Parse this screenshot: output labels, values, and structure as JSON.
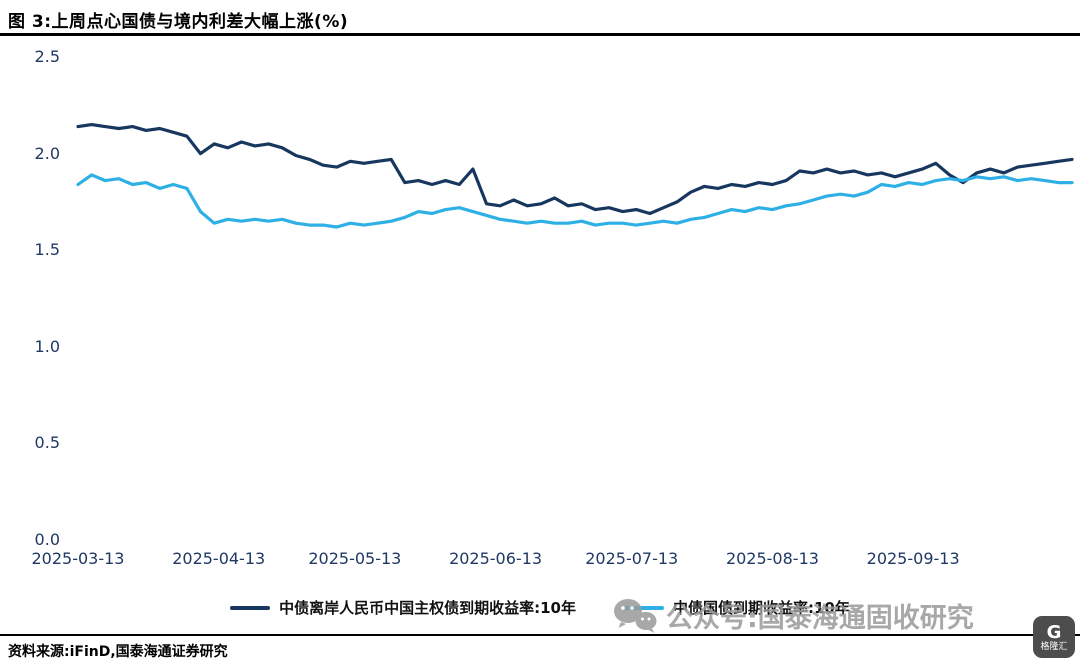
{
  "header": {
    "title": "图 3:上周点心国债与境内利差大幅上涨(%)"
  },
  "chart_data": {
    "type": "line",
    "title": "上周点心国债与境内利差大幅上涨(%)",
    "xlabel": "",
    "ylabel": "",
    "unit": "%",
    "grid": false,
    "legend_position": "bottom",
    "ylim": [
      0,
      2.5
    ],
    "yticks": [
      0.0,
      0.5,
      1.0,
      1.5,
      2.0,
      2.5
    ],
    "x_unit": "days since 2025-03-13",
    "xtick_days": [
      0,
      31,
      61,
      92,
      122,
      153,
      184
    ],
    "xtick_labels": [
      "2025-03-13",
      "2025-04-13",
      "2025-05-13",
      "2025-06-13",
      "2025-07-13",
      "2025-08-13",
      "2025-09-13"
    ],
    "x": [
      0,
      3,
      6,
      9,
      12,
      15,
      18,
      21,
      24,
      27,
      30,
      33,
      36,
      39,
      42,
      45,
      48,
      51,
      54,
      57,
      60,
      63,
      66,
      69,
      72,
      75,
      78,
      81,
      84,
      87,
      90,
      93,
      96,
      99,
      102,
      105,
      108,
      111,
      114,
      117,
      120,
      123,
      126,
      129,
      132,
      135,
      138,
      141,
      144,
      147,
      150,
      153,
      156,
      159,
      162,
      165,
      168,
      171,
      174,
      177,
      180,
      183,
      186,
      189,
      192,
      195,
      198,
      201,
      204,
      207,
      210,
      213,
      216,
      219
    ],
    "series": [
      {
        "id": "offshore-cny-china-sovereign-10y",
        "name": "中债离岸人民币中国主权债到期收益率:10年",
        "color": "#17375e",
        "values": [
          2.14,
          2.15,
          2.14,
          2.13,
          2.14,
          2.12,
          2.13,
          2.11,
          2.09,
          2.0,
          2.05,
          2.03,
          2.06,
          2.04,
          2.05,
          2.03,
          1.99,
          1.97,
          1.94,
          1.93,
          1.96,
          1.95,
          1.96,
          1.97,
          1.85,
          1.86,
          1.84,
          1.86,
          1.84,
          1.92,
          1.74,
          1.73,
          1.76,
          1.73,
          1.74,
          1.77,
          1.73,
          1.74,
          1.71,
          1.72,
          1.7,
          1.71,
          1.69,
          1.72,
          1.75,
          1.8,
          1.83,
          1.82,
          1.84,
          1.83,
          1.85,
          1.84,
          1.86,
          1.91,
          1.9,
          1.92,
          1.9,
          1.91,
          1.89,
          1.9,
          1.88,
          1.9,
          1.92,
          1.95,
          1.89,
          1.85,
          1.9,
          1.92,
          1.9,
          1.93,
          1.94,
          1.95,
          1.96,
          1.97
        ]
      },
      {
        "id": "onshore-cgb-10y",
        "name": "中债国债到期收益率:10年",
        "color": "#2eb0e6",
        "values": [
          1.84,
          1.89,
          1.86,
          1.87,
          1.84,
          1.85,
          1.82,
          1.84,
          1.82,
          1.7,
          1.64,
          1.66,
          1.65,
          1.66,
          1.65,
          1.66,
          1.64,
          1.63,
          1.63,
          1.62,
          1.64,
          1.63,
          1.64,
          1.65,
          1.67,
          1.7,
          1.69,
          1.71,
          1.72,
          1.7,
          1.68,
          1.66,
          1.65,
          1.64,
          1.65,
          1.64,
          1.64,
          1.65,
          1.63,
          1.64,
          1.64,
          1.63,
          1.64,
          1.65,
          1.64,
          1.66,
          1.67,
          1.69,
          1.71,
          1.7,
          1.72,
          1.71,
          1.73,
          1.74,
          1.76,
          1.78,
          1.79,
          1.78,
          1.8,
          1.84,
          1.83,
          1.85,
          1.84,
          1.86,
          1.87,
          1.86,
          1.88,
          1.87,
          1.88,
          1.86,
          1.87,
          1.86,
          1.85,
          1.85
        ]
      }
    ]
  },
  "watermark": {
    "icon": "wechat-icon",
    "text": "公众号:国泰海通固收研究"
  },
  "logo": {
    "icon_letter": "G",
    "label": "格隆汇"
  },
  "footer": {
    "source": "资料来源:iFinD,国泰海通证券研究"
  },
  "colors": {
    "axis_label": "#1f3864",
    "title_rule": "#000000",
    "watermark_gray": "#9a9a9a"
  }
}
